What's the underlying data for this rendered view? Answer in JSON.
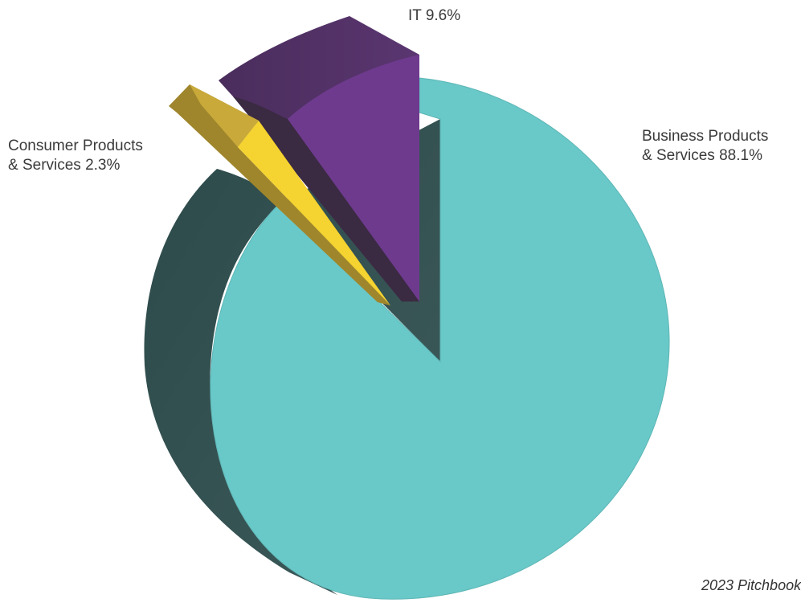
{
  "colors": {
    "business_top": "#69c8c8",
    "business_side": "#2f4c4c",
    "it_top": "#6e3a8e",
    "it_side": "#3d2a46",
    "consumer_top": "#f5d330",
    "consumer_side": "#9f862c"
  },
  "chart_data": {
    "type": "pie",
    "style": "3d-exploded",
    "legend": "none",
    "slices": [
      {
        "label_lines": [
          "Business Products",
          "& Services 88.1%"
        ],
        "category": "Business Products & Services",
        "value": 88.1
      },
      {
        "label_lines": [
          "IT 9.6%"
        ],
        "category": "IT",
        "value": 9.6
      },
      {
        "label_lines": [
          "Consumer Products",
          "& Services 2.3%"
        ],
        "category": "Consumer Products & Services",
        "value": 2.3
      }
    ],
    "unit": "%"
  },
  "footnote": "2023 Pitchbook"
}
